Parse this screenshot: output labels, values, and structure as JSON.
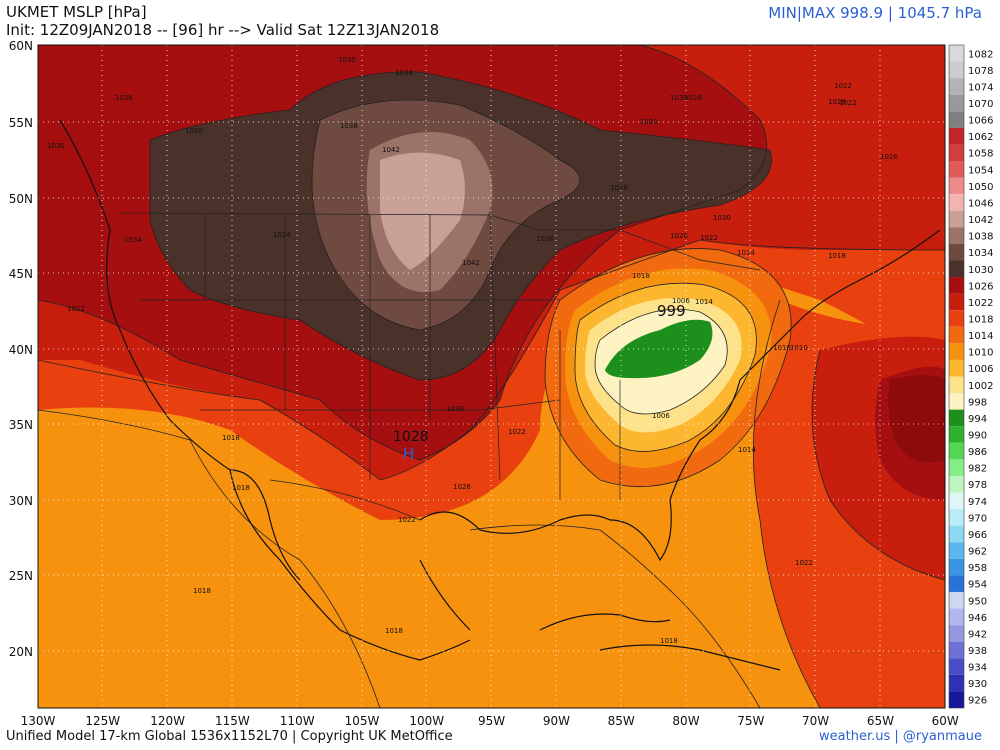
{
  "header": {
    "title": "UKMET MSLP [hPa]",
    "init_line": "Init: 12Z09JAN2018 -- [96] hr --> Valid Sat 12Z13JAN2018",
    "minmax": "MIN|MAX 998.9 | 1045.7 hPa"
  },
  "footer": {
    "left": "Unified Model 17-km Global 1536x1152L70 | Copyright UK MetOffice",
    "right": "weather.us | @ryanmaue"
  },
  "axes": {
    "lat_labels": [
      "60N",
      "55N",
      "50N",
      "45N",
      "40N",
      "35N",
      "30N",
      "25N",
      "20N"
    ],
    "lon_labels": [
      "130W",
      "125W",
      "120W",
      "115W",
      "110W",
      "105W",
      "100W",
      "95W",
      "90W",
      "85W",
      "80W",
      "75W",
      "70W",
      "65W",
      "60W"
    ]
  },
  "colorbar": {
    "levels": [
      "1082",
      "1078",
      "1074",
      "1070",
      "1066",
      "1062",
      "1058",
      "1054",
      "1050",
      "1046",
      "1042",
      "1038",
      "1034",
      "1030",
      "1026",
      "1022",
      "1018",
      "1014",
      "1010",
      "1006",
      "1002",
      "998",
      "994",
      "990",
      "986",
      "982",
      "978",
      "974",
      "970",
      "966",
      "962",
      "958",
      "954",
      "950",
      "946",
      "942",
      "938",
      "934",
      "930",
      "926"
    ],
    "colors": [
      "#d9d9d9",
      "#cccccc",
      "#b3b3b3",
      "#999999",
      "#808080",
      "#c0262a",
      "#d23d3d",
      "#e05a5a",
      "#ee8a8a",
      "#f3b3ae",
      "#c9a096",
      "#9c7368",
      "#6e4a40",
      "#4a3129",
      "#a50f0f",
      "#c81e0e",
      "#e8400f",
      "#f26a0f",
      "#f7920f",
      "#fcb630",
      "#fde28a",
      "#fdf3c2",
      "#1d8f1d",
      "#2fb12f",
      "#53d653",
      "#86ee86",
      "#bff6bf",
      "#dff6f6",
      "#b9ecf6",
      "#8dd8f2",
      "#5cb8ec",
      "#3b95e2",
      "#2a73d4",
      "#cfd6f2",
      "#b3b6ec",
      "#9497e0",
      "#6f71d4",
      "#4b4dc6",
      "#2f30b3",
      "#17179a"
    ]
  },
  "map": {
    "high_value": "1028",
    "high_letter": "H",
    "low_value": "999",
    "contour_labels": [
      "1030",
      "1034",
      "1026",
      "1030",
      "1042",
      "1038",
      "1034",
      "1042",
      "1030",
      "1030",
      "1026",
      "1022",
      "1022",
      "1026",
      "1026",
      "1018",
      "1030",
      "1022",
      "1018",
      "1014",
      "1014",
      "1010",
      "1006",
      "1006",
      "1014",
      "1010",
      "1018",
      "1018",
      "1022",
      "1022",
      "1018",
      "1018",
      "1018",
      "1022",
      "1026",
      "1030",
      "1038",
      "1030",
      "1034",
      "1026",
      "1022",
      "1026"
    ]
  }
}
